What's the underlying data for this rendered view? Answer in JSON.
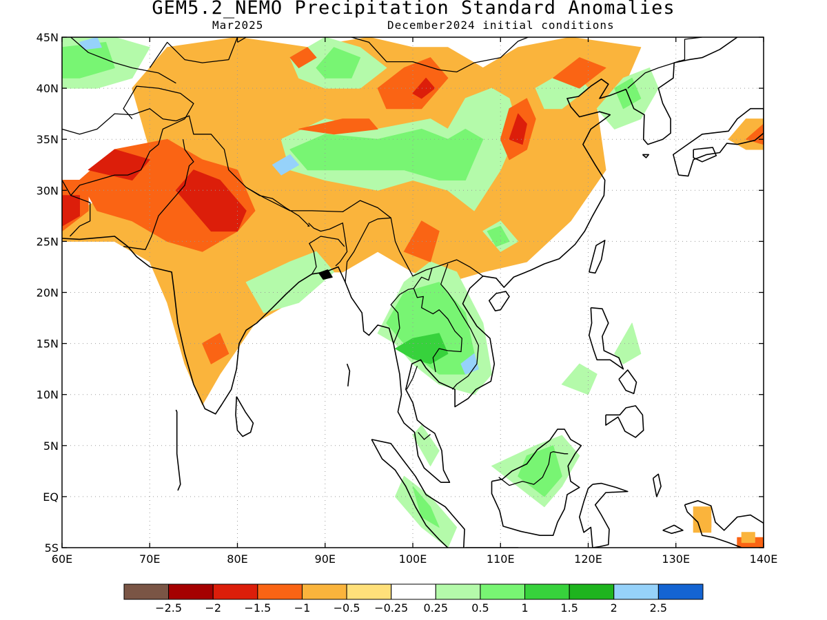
{
  "title": "GEM5.2_NEMO Precipitation Standard Anomalies",
  "subtitle_left": "Mar2025",
  "subtitle_right": "December2024 initial conditions",
  "map": {
    "lon_range": [
      60,
      140
    ],
    "lat_range": [
      -5,
      45
    ],
    "lat_labels": [
      "45N",
      "40N",
      "35N",
      "30N",
      "25N",
      "20N",
      "15N",
      "10N",
      "5N",
      "EQ",
      "5S"
    ],
    "lon_labels": [
      "60E",
      "70E",
      "80E",
      "90E",
      "100E",
      "110E",
      "120E",
      "130E",
      "140E"
    ],
    "grid": true
  },
  "colorbar": {
    "colors": [
      "#7a5545",
      "#a50000",
      "#dc1e0a",
      "#fa6414",
      "#fab43c",
      "#ffe07a",
      "#ffffff",
      "#b4faaa",
      "#78f573",
      "#37d23c",
      "#1eb41e",
      "#96d2fa",
      "#1464d2"
    ],
    "labels": [
      "-2.5",
      "-2",
      "-1.5",
      "-1",
      "-0.5",
      "-0.25",
      "0.25",
      "0.5",
      "1",
      "1.5",
      "2",
      "2.5"
    ]
  },
  "anomaly_colors": {
    "orange": "#fab43c",
    "dark_orange": "#fa6414",
    "red": "#dc1e0a",
    "light_green": "#b4faaa",
    "green": "#78f573",
    "mid_green": "#37d23c",
    "blue": "#96d2fa"
  }
}
